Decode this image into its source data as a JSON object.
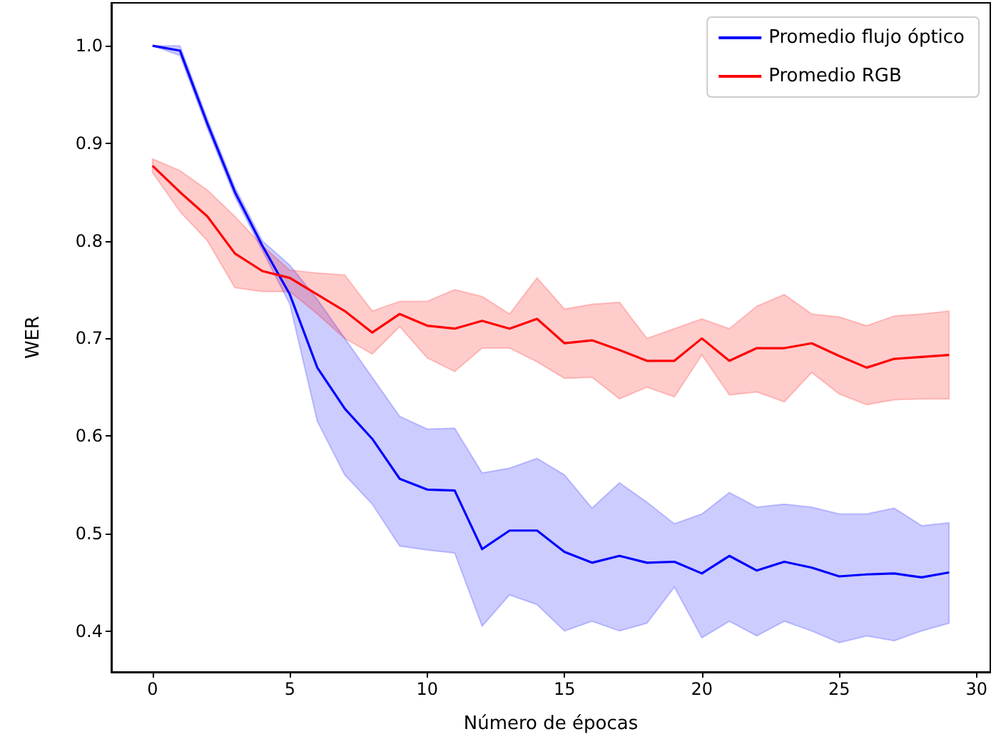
{
  "chart_data": {
    "type": "line",
    "xlabel": "Número de épocas",
    "ylabel": "WER",
    "x": [
      0,
      1,
      2,
      3,
      4,
      5,
      6,
      7,
      8,
      9,
      10,
      11,
      12,
      13,
      14,
      15,
      16,
      17,
      18,
      19,
      20,
      21,
      22,
      23,
      24,
      25,
      26,
      27,
      28,
      29
    ],
    "xlim": [
      -1.5,
      30.5
    ],
    "xticks": [
      0,
      5,
      10,
      15,
      20,
      25,
      30
    ],
    "ylim": [
      0.358,
      1.044
    ],
    "yticks": [
      0.4,
      0.5,
      0.6,
      0.7,
      0.8,
      0.9,
      {
        "value": 1,
        "label": "1.0"
      }
    ],
    "grid": false,
    "legend": "top right",
    "marker": "none",
    "line_style": "solid",
    "series": [
      {
        "name": "Promedio flujo óptico",
        "color": "#0000ff",
        "values": [
          1.0,
          0.995,
          0.92,
          0.85,
          0.795,
          0.745,
          0.67,
          0.628,
          0.597,
          0.556,
          0.545,
          0.544,
          0.484,
          0.503,
          0.503,
          0.481,
          0.47,
          0.477,
          0.47,
          0.471,
          0.459,
          0.477,
          0.462,
          0.471,
          0.465,
          0.456,
          0.458,
          0.459,
          0.455,
          0.46
        ],
        "upper": [
          1.0,
          1.0,
          0.925,
          0.855,
          0.8,
          0.775,
          0.74,
          0.7,
          0.66,
          0.62,
          0.607,
          0.608,
          0.562,
          0.567,
          0.577,
          0.56,
          0.526,
          0.552,
          0.532,
          0.51,
          0.52,
          0.542,
          0.527,
          0.53,
          0.527,
          0.52,
          0.52,
          0.526,
          0.508,
          0.511
        ],
        "lower": [
          1.0,
          0.99,
          0.915,
          0.845,
          0.79,
          0.735,
          0.615,
          0.56,
          0.53,
          0.487,
          0.483,
          0.48,
          0.405,
          0.437,
          0.427,
          0.4,
          0.41,
          0.4,
          0.408,
          0.445,
          0.393,
          0.41,
          0.395,
          0.41,
          0.4,
          0.388,
          0.395,
          0.39,
          0.4,
          0.408
        ]
      },
      {
        "name": "Promedio RGB",
        "color": "#ff0000",
        "values": [
          0.877,
          0.85,
          0.825,
          0.787,
          0.769,
          0.762,
          0.745,
          0.728,
          0.706,
          0.725,
          0.713,
          0.71,
          0.718,
          0.71,
          0.72,
          0.695,
          0.698,
          0.688,
          0.677,
          0.677,
          0.7,
          0.677,
          0.69,
          0.69,
          0.695,
          0.682,
          0.67,
          0.679,
          0.681,
          0.683
        ],
        "upper": [
          0.884,
          0.872,
          0.852,
          0.825,
          0.795,
          0.77,
          0.767,
          0.765,
          0.728,
          0.738,
          0.738,
          0.75,
          0.743,
          0.725,
          0.762,
          0.73,
          0.735,
          0.737,
          0.7,
          0.71,
          0.72,
          0.71,
          0.733,
          0.745,
          0.725,
          0.722,
          0.713,
          0.723,
          0.725,
          0.728
        ],
        "lower": [
          0.87,
          0.83,
          0.8,
          0.752,
          0.748,
          0.748,
          0.725,
          0.7,
          0.684,
          0.712,
          0.68,
          0.666,
          0.69,
          0.69,
          0.676,
          0.659,
          0.66,
          0.638,
          0.65,
          0.64,
          0.683,
          0.642,
          0.645,
          0.635,
          0.665,
          0.643,
          0.632,
          0.637,
          0.638,
          0.638
        ]
      }
    ]
  }
}
